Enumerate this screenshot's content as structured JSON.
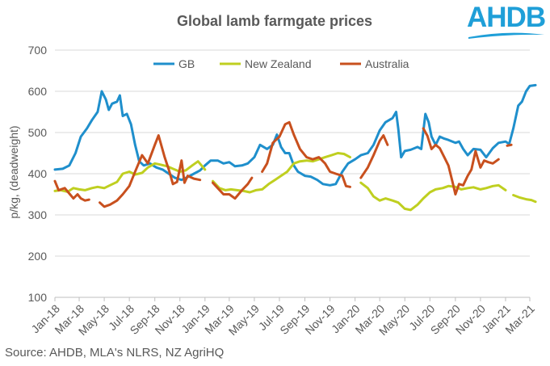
{
  "brand": {
    "name": "AHDB",
    "color": "#1f9fd8"
  },
  "chart_data": {
    "type": "line",
    "title": "Global lamb farmgate prices",
    "ylabel": "p/kg, (deadweight)",
    "xlabel": "",
    "ylim": [
      100,
      700
    ],
    "yticks": [
      100,
      200,
      300,
      400,
      500,
      600,
      700
    ],
    "xlim": [
      "2018-01",
      "2021-03"
    ],
    "xticks": [
      "Jan-18",
      "Mar-18",
      "May-18",
      "Jul-18",
      "Sep-18",
      "Nov-18",
      "Jan-19",
      "Mar-19",
      "May-19",
      "Jul-19",
      "Sep-19",
      "Nov-19",
      "Jan-20",
      "Mar-20",
      "May-20",
      "Jul-20",
      "Sep-20",
      "Nov-20",
      "Jan-21",
      "Mar-21"
    ],
    "grid": "horizontal",
    "legend": "top",
    "source": "Source: AHDB, MLA's NLRS, NZ AgriHQ",
    "series": [
      {
        "name": "GB",
        "color": "#1f8fcc",
        "points": [
          [
            "2018-01-01",
            410
          ],
          [
            "2018-01-20",
            412
          ],
          [
            "2018-02-05",
            420
          ],
          [
            "2018-02-20",
            450
          ],
          [
            "2018-03-05",
            490
          ],
          [
            "2018-03-20",
            510
          ],
          [
            "2018-04-01",
            530
          ],
          [
            "2018-04-15",
            550
          ],
          [
            "2018-04-25",
            600
          ],
          [
            "2018-05-05",
            580
          ],
          [
            "2018-05-12",
            555
          ],
          [
            "2018-05-20",
            570
          ],
          [
            "2018-06-01",
            575
          ],
          [
            "2018-06-08",
            590
          ],
          [
            "2018-06-15",
            540
          ],
          [
            "2018-06-25",
            545
          ],
          [
            "2018-07-05",
            520
          ],
          [
            "2018-07-15",
            470
          ],
          [
            "2018-07-25",
            430
          ],
          [
            "2018-08-05",
            420
          ],
          [
            "2018-08-20",
            425
          ],
          [
            "2018-09-05",
            415
          ],
          [
            "2018-09-20",
            410
          ],
          [
            "2018-10-05",
            400
          ],
          [
            "2018-10-20",
            390
          ],
          [
            "2018-11-05",
            385
          ],
          [
            "2018-11-20",
            392
          ],
          [
            "2018-12-05",
            400
          ],
          [
            "2018-12-20",
            408
          ],
          [
            "2019-01-01",
            420
          ],
          [
            "2019-01-15",
            432
          ],
          [
            "2019-02-01",
            432
          ],
          [
            "2019-02-15",
            425
          ],
          [
            "2019-03-01",
            428
          ],
          [
            "2019-03-15",
            418
          ],
          [
            "2019-04-01",
            420
          ],
          [
            "2019-04-15",
            425
          ],
          [
            "2019-05-01",
            440
          ],
          [
            "2019-05-15",
            470
          ],
          [
            "2019-06-01",
            460
          ],
          [
            "2019-06-15",
            470
          ],
          [
            "2019-06-25",
            495
          ],
          [
            "2019-07-05",
            465
          ],
          [
            "2019-07-15",
            450
          ],
          [
            "2019-07-25",
            450
          ],
          [
            "2019-08-05",
            420
          ],
          [
            "2019-08-15",
            405
          ],
          [
            "2019-09-01",
            395
          ],
          [
            "2019-09-15",
            393
          ],
          [
            "2019-10-01",
            385
          ],
          [
            "2019-10-15",
            375
          ],
          [
            "2019-11-01",
            372
          ],
          [
            "2019-11-15",
            375
          ],
          [
            "2019-12-01",
            405
          ],
          [
            "2019-12-15",
            425
          ],
          [
            "2020-01-01",
            435
          ],
          [
            "2020-01-15",
            445
          ],
          [
            "2020-02-01",
            450
          ],
          [
            "2020-02-15",
            470
          ],
          [
            "2020-03-01",
            505
          ],
          [
            "2020-03-15",
            525
          ],
          [
            "2020-04-01",
            535
          ],
          [
            "2020-04-10",
            550
          ],
          [
            "2020-04-15",
            510
          ],
          [
            "2020-04-22",
            440
          ],
          [
            "2020-05-01",
            455
          ],
          [
            "2020-05-15",
            458
          ],
          [
            "2020-06-01",
            465
          ],
          [
            "2020-06-10",
            460
          ],
          [
            "2020-06-20",
            545
          ],
          [
            "2020-06-28",
            525
          ],
          [
            "2020-07-05",
            490
          ],
          [
            "2020-07-15",
            470
          ],
          [
            "2020-07-25",
            490
          ],
          [
            "2020-08-05",
            485
          ],
          [
            "2020-08-15",
            482
          ],
          [
            "2020-09-01",
            475
          ],
          [
            "2020-09-10",
            478
          ],
          [
            "2020-09-20",
            460
          ],
          [
            "2020-10-01",
            445
          ],
          [
            "2020-10-15",
            460
          ],
          [
            "2020-11-01",
            458
          ],
          [
            "2020-11-15",
            440
          ],
          [
            "2020-12-01",
            462
          ],
          [
            "2020-12-15",
            475
          ],
          [
            "2021-01-01",
            478
          ],
          [
            "2021-01-10",
            472
          ],
          [
            "2021-01-20",
            510
          ],
          [
            "2021-02-01",
            565
          ],
          [
            "2021-02-10",
            575
          ],
          [
            "2021-02-20",
            600
          ],
          [
            "2021-03-01",
            613
          ],
          [
            "2021-03-15",
            615
          ]
        ]
      },
      {
        "name": "New Zealand",
        "color": "#bfcf20",
        "points": [
          [
            "2018-01-01",
            358
          ],
          [
            "2018-01-15",
            360
          ],
          [
            "2018-02-01",
            356
          ],
          [
            "2018-02-15",
            365
          ],
          [
            "2018-03-01",
            362
          ],
          [
            "2018-03-15",
            360
          ],
          [
            "2018-04-01",
            365
          ],
          [
            "2018-04-15",
            368
          ],
          [
            "2018-05-01",
            365
          ],
          [
            "2018-05-15",
            372
          ],
          [
            "2018-06-01",
            380
          ],
          [
            "2018-06-15",
            400
          ],
          [
            "2018-07-01",
            405
          ],
          [
            "2018-07-15",
            398
          ],
          [
            "2018-08-01",
            402
          ],
          [
            "2018-08-15",
            415
          ],
          [
            "2018-09-01",
            425
          ],
          [
            "2018-09-15",
            422
          ],
          [
            "2018-10-01",
            418
          ],
          [
            "2018-10-15",
            412
          ],
          [
            "2018-11-01",
            405
          ],
          [
            "2018-11-15",
            408
          ],
          [
            "2018-12-01",
            420
          ],
          [
            "2018-12-15",
            430
          ],
          [
            "2019-01-01",
            410
          ],
          null,
          [
            "2019-01-20",
            382
          ],
          [
            "2019-02-05",
            365
          ],
          [
            "2019-02-20",
            360
          ],
          [
            "2019-03-05",
            362
          ],
          [
            "2019-03-20",
            360
          ],
          [
            "2019-04-05",
            358
          ],
          [
            "2019-04-20",
            355
          ],
          [
            "2019-05-05",
            360
          ],
          [
            "2019-05-20",
            362
          ],
          [
            "2019-06-05",
            375
          ],
          [
            "2019-06-20",
            385
          ],
          [
            "2019-07-05",
            395
          ],
          [
            "2019-07-20",
            405
          ],
          [
            "2019-08-05",
            425
          ],
          [
            "2019-08-20",
            430
          ],
          [
            "2019-09-05",
            432
          ],
          [
            "2019-09-20",
            430
          ],
          [
            "2019-10-05",
            435
          ],
          [
            "2019-10-20",
            440
          ],
          [
            "2019-11-05",
            445
          ],
          [
            "2019-11-20",
            450
          ],
          [
            "2019-12-05",
            448
          ],
          [
            "2019-12-20",
            440
          ],
          null,
          [
            "2020-01-15",
            378
          ],
          [
            "2020-02-01",
            365
          ],
          [
            "2020-02-15",
            345
          ],
          [
            "2020-03-01",
            335
          ],
          [
            "2020-03-15",
            340
          ],
          [
            "2020-04-01",
            335
          ],
          [
            "2020-04-15",
            330
          ],
          [
            "2020-05-01",
            315
          ],
          [
            "2020-05-15",
            312
          ],
          [
            "2020-06-01",
            325
          ],
          [
            "2020-06-15",
            340
          ],
          [
            "2020-07-01",
            355
          ],
          [
            "2020-07-15",
            362
          ],
          [
            "2020-08-01",
            365
          ],
          [
            "2020-08-15",
            370
          ],
          [
            "2020-09-01",
            368
          ],
          [
            "2020-09-15",
            362
          ],
          [
            "2020-10-01",
            365
          ],
          [
            "2020-10-15",
            367
          ],
          [
            "2020-11-01",
            362
          ],
          [
            "2020-11-15",
            365
          ],
          [
            "2020-12-01",
            370
          ],
          [
            "2020-12-15",
            372
          ],
          [
            "2021-01-01",
            360
          ],
          null,
          [
            "2021-01-20",
            348
          ],
          [
            "2021-02-05",
            342
          ],
          [
            "2021-02-20",
            338
          ],
          [
            "2021-03-05",
            336
          ],
          [
            "2021-03-15",
            332
          ]
        ]
      },
      {
        "name": "Australia",
        "color": "#c8501e",
        "points": [
          [
            "2018-01-01",
            382
          ],
          [
            "2018-01-10",
            360
          ],
          [
            "2018-01-25",
            365
          ],
          [
            "2018-02-05",
            352
          ],
          [
            "2018-02-15",
            340
          ],
          [
            "2018-02-25",
            350
          ],
          [
            "2018-03-05",
            340
          ],
          [
            "2018-03-15",
            335
          ],
          [
            "2018-03-25",
            337
          ],
          null,
          [
            "2018-04-20",
            330
          ],
          [
            "2018-05-01",
            320
          ],
          [
            "2018-05-15",
            325
          ],
          [
            "2018-06-01",
            335
          ],
          [
            "2018-06-15",
            350
          ],
          [
            "2018-07-01",
            370
          ],
          [
            "2018-07-15",
            405
          ],
          [
            "2018-08-01",
            445
          ],
          [
            "2018-08-15",
            425
          ],
          [
            "2018-09-01",
            470
          ],
          [
            "2018-09-10",
            493
          ],
          [
            "2018-09-25",
            440
          ],
          [
            "2018-10-05",
            410
          ],
          [
            "2018-10-15",
            375
          ],
          [
            "2018-10-25",
            380
          ],
          [
            "2018-11-05",
            432
          ],
          [
            "2018-11-12",
            378
          ],
          [
            "2018-11-20",
            395
          ],
          [
            "2018-12-05",
            388
          ],
          [
            "2018-12-20",
            385
          ],
          null,
          [
            "2019-01-20",
            378
          ],
          [
            "2019-02-01",
            365
          ],
          [
            "2019-02-15",
            350
          ],
          [
            "2019-03-01",
            350
          ],
          [
            "2019-03-15",
            340
          ],
          [
            "2019-04-01",
            360
          ],
          [
            "2019-04-15",
            375
          ],
          [
            "2019-04-25",
            390
          ],
          null,
          [
            "2019-05-20",
            405
          ],
          [
            "2019-06-01",
            425
          ],
          [
            "2019-06-15",
            475
          ],
          [
            "2019-07-01",
            490
          ],
          [
            "2019-07-15",
            520
          ],
          [
            "2019-07-25",
            525
          ],
          [
            "2019-08-05",
            495
          ],
          [
            "2019-08-20",
            460
          ],
          [
            "2019-09-05",
            440
          ],
          [
            "2019-09-20",
            435
          ],
          [
            "2019-10-05",
            440
          ],
          [
            "2019-10-20",
            425
          ],
          [
            "2019-11-01",
            405
          ],
          [
            "2019-11-15",
            400
          ],
          [
            "2019-12-01",
            395
          ],
          [
            "2019-12-10",
            370
          ],
          [
            "2019-12-20",
            368
          ],
          null,
          [
            "2020-01-15",
            390
          ],
          [
            "2020-02-01",
            415
          ],
          [
            "2020-02-15",
            445
          ],
          [
            "2020-03-01",
            480
          ],
          [
            "2020-03-10",
            493
          ],
          [
            "2020-03-20",
            470
          ],
          null,
          [
            "2020-06-15",
            510
          ],
          [
            "2020-06-25",
            492
          ],
          [
            "2020-07-05",
            460
          ],
          [
            "2020-07-15",
            470
          ],
          [
            "2020-07-25",
            462
          ],
          [
            "2020-08-05",
            440
          ],
          [
            "2020-08-15",
            420
          ],
          [
            "2020-08-25",
            380
          ],
          [
            "2020-09-01",
            350
          ],
          [
            "2020-09-10",
            375
          ],
          [
            "2020-09-20",
            372
          ],
          [
            "2020-10-01",
            395
          ],
          [
            "2020-10-10",
            410
          ],
          [
            "2020-10-20",
            455
          ],
          [
            "2020-11-01",
            415
          ],
          [
            "2020-11-10",
            432
          ],
          [
            "2020-11-20",
            428
          ],
          [
            "2020-12-01",
            425
          ],
          [
            "2020-12-15",
            435
          ],
          null,
          [
            "2021-01-05",
            468
          ],
          [
            "2021-01-15",
            470
          ]
        ]
      }
    ]
  }
}
